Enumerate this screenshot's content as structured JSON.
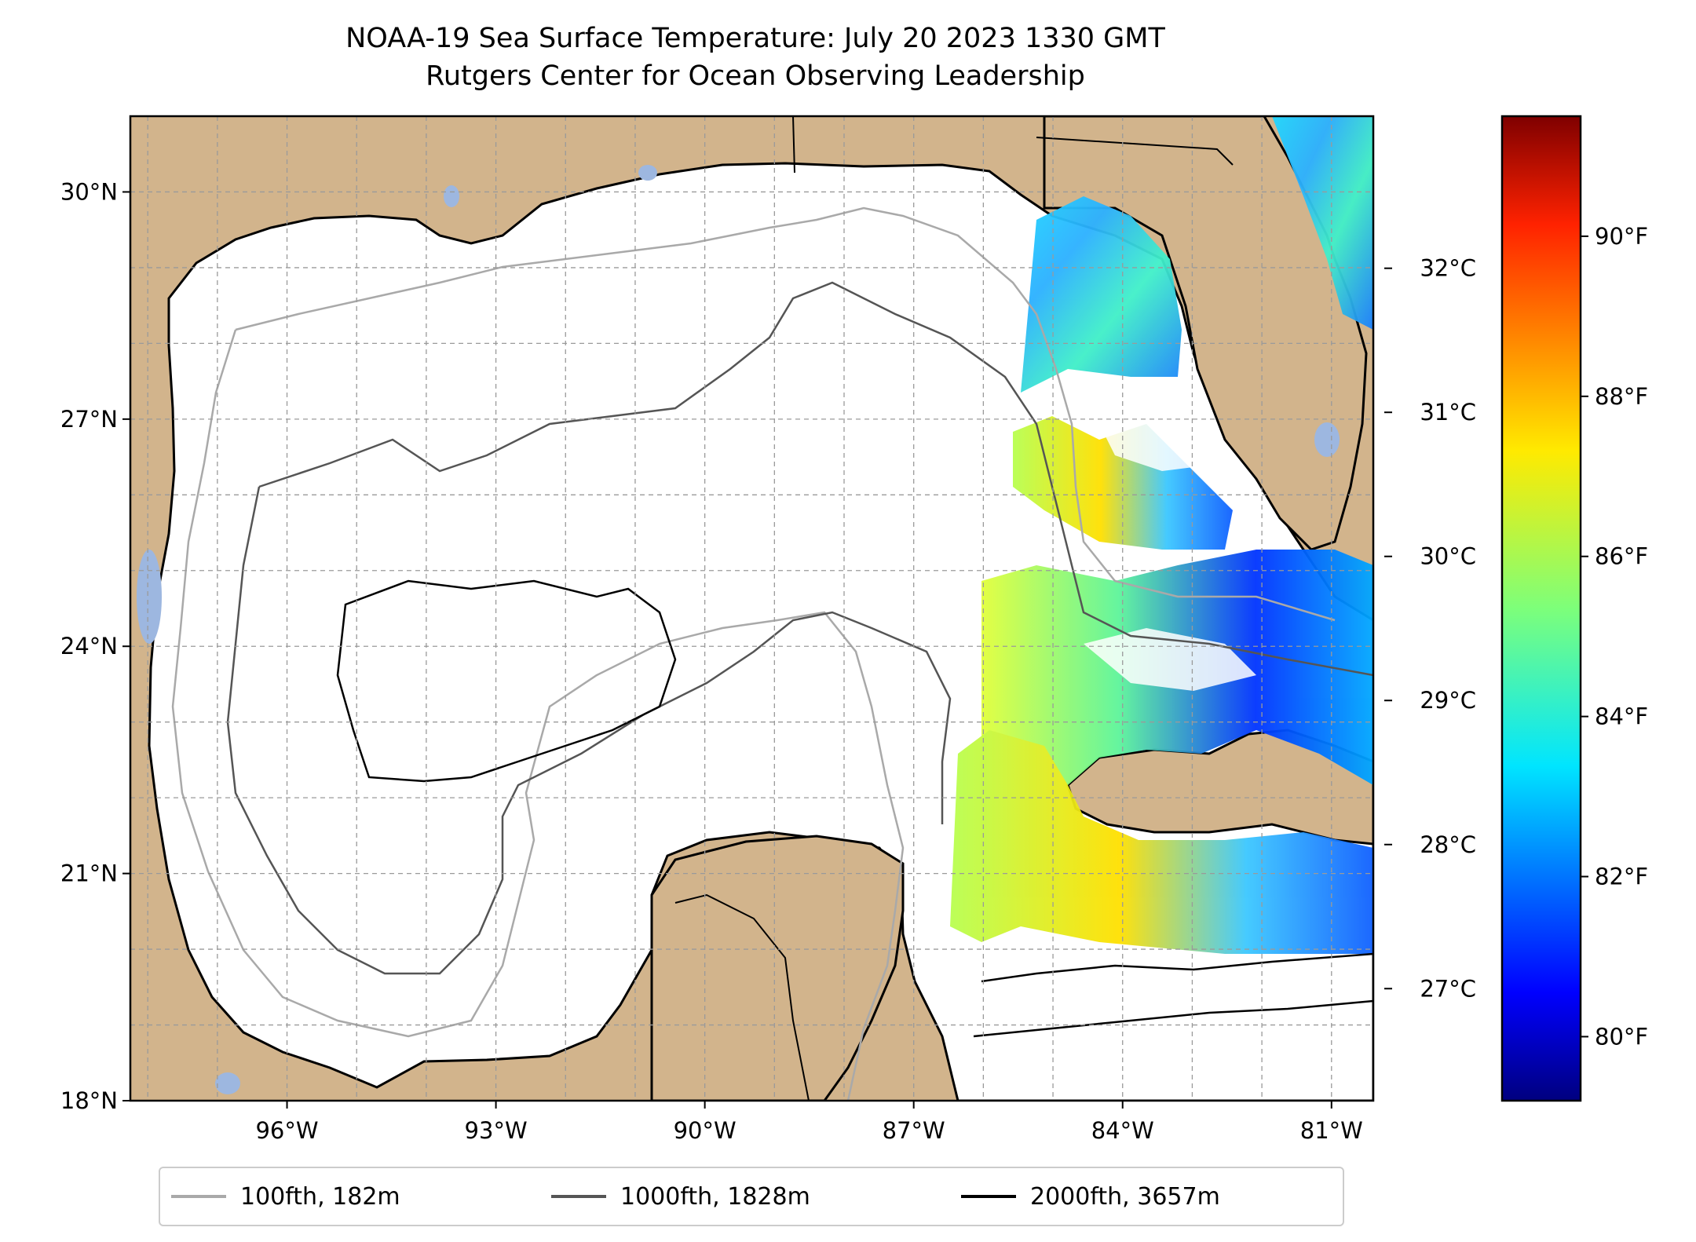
{
  "title": {
    "line1": "NOAA-19 Sea Surface Temperature: July 20 2023 1330 GMT",
    "line2": "Rutgers Center for Ocean Observing Leadership"
  },
  "map": {
    "lon_range": [
      -98.25,
      -80.4
    ],
    "lat_range": [
      18.0,
      31.0
    ],
    "lat_ticks": [
      {
        "value": 30,
        "label": "30°N"
      },
      {
        "value": 27,
        "label": "27°N"
      },
      {
        "value": 24,
        "label": "24°N"
      },
      {
        "value": 21,
        "label": "21°N"
      },
      {
        "value": 18,
        "label": "18°N"
      }
    ],
    "lon_ticks": [
      {
        "value": -96,
        "label": "96°W"
      },
      {
        "value": -93,
        "label": "93°W"
      },
      {
        "value": -90,
        "label": "90°W"
      },
      {
        "value": -87,
        "label": "87°W"
      },
      {
        "value": -84,
        "label": "84°W"
      },
      {
        "value": -81,
        "label": "81°W"
      }
    ],
    "gridlines": "dashed",
    "colors": {
      "land": "#d2b48c",
      "water": "#ffffff",
      "lakes": "#9db7e0",
      "coast": "#000000"
    }
  },
  "colorbar": {
    "colormap": "jet",
    "celsius_ticks": [
      {
        "value": 32,
        "label": "32°C"
      },
      {
        "value": 31,
        "label": "31°C"
      },
      {
        "value": 30,
        "label": "30°C"
      },
      {
        "value": 29,
        "label": "29°C"
      },
      {
        "value": 28,
        "label": "28°C"
      },
      {
        "value": 27,
        "label": "27°C"
      }
    ],
    "fahrenheit_ticks": [
      {
        "value": 90,
        "label": "90°F"
      },
      {
        "value": 88,
        "label": "88°F"
      },
      {
        "value": 86,
        "label": "86°F"
      },
      {
        "value": 84,
        "label": "84°F"
      },
      {
        "value": 82,
        "label": "82°F"
      },
      {
        "value": 80,
        "label": "80°F"
      }
    ],
    "range_f": [
      79.2,
      91.5
    ]
  },
  "legend": {
    "placement": "bottom-center",
    "entries": [
      {
        "label": "100fth, 182m",
        "color": "#a9a9a9"
      },
      {
        "label": "1000fth, 1828m",
        "color": "#555555"
      },
      {
        "label": "2000fth, 3657m",
        "color": "#000000"
      }
    ]
  }
}
